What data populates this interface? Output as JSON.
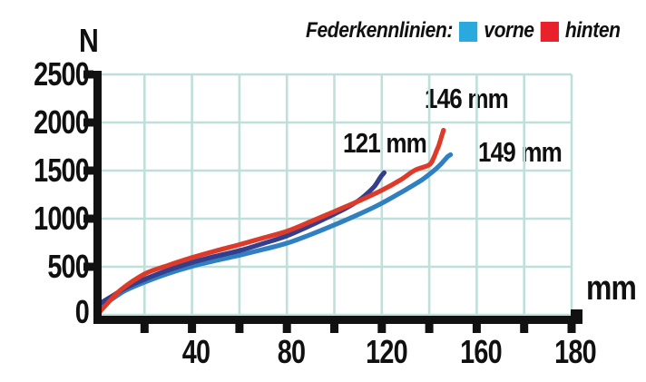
{
  "legend": {
    "title": "Federkennlinien:",
    "items": [
      {
        "label": "vorne",
        "color": "#29A9DE"
      },
      {
        "label": "hinten",
        "color": "#E8212B"
      }
    ]
  },
  "axes": {
    "y": {
      "unit": "N",
      "tick_labels": [
        "2500",
        "2000",
        "1500",
        "1000",
        "500",
        "0"
      ]
    },
    "x": {
      "unit": "mm",
      "tick_labels": [
        "40",
        "80",
        "120",
        "160",
        "180"
      ]
    }
  },
  "annotations": [
    {
      "text": "121 mm"
    },
    {
      "text": "146 mm"
    },
    {
      "text": "149 mm"
    }
  ],
  "colors": {
    "grid": "#BFDFDA",
    "axis": "#111111"
  },
  "chart_data": {
    "type": "line",
    "title": "Federkennlinien",
    "xlabel": "mm",
    "ylabel": "N",
    "xlim": [
      0,
      200
    ],
    "ylim": [
      0,
      2500
    ],
    "x_tick_step_mm": 20,
    "x_tick_labels_shown": [
      "40",
      "80",
      "120",
      "160",
      "180"
    ],
    "y_tick_labels_shown": [
      "0",
      "500",
      "1000",
      "1500",
      "2000",
      "2500"
    ],
    "grid": true,
    "legend": {
      "title": "Federkennlinien:",
      "position": "top",
      "entries": [
        {
          "name": "vorne",
          "color": "#29A9DE"
        },
        {
          "name": "hinten",
          "color": "#E8212B"
        }
      ]
    },
    "series": [
      {
        "name": "149 mm",
        "legend_match": "vorne",
        "color": "#2F7FC1",
        "end_annotation": "149 mm",
        "points": [
          [
            0,
            70
          ],
          [
            6,
            160
          ],
          [
            12,
            255
          ],
          [
            20,
            340
          ],
          [
            30,
            430
          ],
          [
            40,
            505
          ],
          [
            50,
            565
          ],
          [
            60,
            620
          ],
          [
            70,
            680
          ],
          [
            80,
            745
          ],
          [
            90,
            835
          ],
          [
            100,
            935
          ],
          [
            110,
            1042
          ],
          [
            120,
            1160
          ],
          [
            130,
            1300
          ],
          [
            137,
            1405
          ],
          [
            142,
            1500
          ],
          [
            145,
            1570
          ],
          [
            147,
            1625
          ],
          [
            148,
            1650
          ],
          [
            149,
            1665
          ]
        ]
      },
      {
        "name": "121 mm",
        "legend_match": "vorne",
        "color": "#333E8C",
        "end_annotation": "121 mm",
        "points": [
          [
            0,
            100
          ],
          [
            6,
            190
          ],
          [
            12,
            280
          ],
          [
            20,
            370
          ],
          [
            30,
            465
          ],
          [
            40,
            545
          ],
          [
            50,
            610
          ],
          [
            60,
            668
          ],
          [
            70,
            742
          ],
          [
            80,
            822
          ],
          [
            90,
            930
          ],
          [
            100,
            1048
          ],
          [
            105,
            1110
          ],
          [
            110,
            1185
          ],
          [
            114,
            1265
          ],
          [
            117,
            1340
          ],
          [
            119,
            1415
          ],
          [
            120,
            1450
          ],
          [
            121,
            1478
          ]
        ]
      },
      {
        "name": "146 mm",
        "legend_match": "hinten",
        "color": "#DE3A2A",
        "end_annotation": "146 mm",
        "points": [
          [
            0,
            0
          ],
          [
            4,
            110
          ],
          [
            10,
            260
          ],
          [
            20,
            425
          ],
          [
            30,
            515
          ],
          [
            40,
            595
          ],
          [
            50,
            665
          ],
          [
            60,
            730
          ],
          [
            70,
            800
          ],
          [
            80,
            870
          ],
          [
            90,
            970
          ],
          [
            100,
            1075
          ],
          [
            110,
            1180
          ],
          [
            120,
            1295
          ],
          [
            128,
            1405
          ],
          [
            134,
            1505
          ],
          [
            140,
            1560
          ],
          [
            142,
            1640
          ],
          [
            143,
            1700
          ],
          [
            144,
            1760
          ],
          [
            145,
            1840
          ],
          [
            146,
            1920
          ]
        ]
      }
    ]
  }
}
